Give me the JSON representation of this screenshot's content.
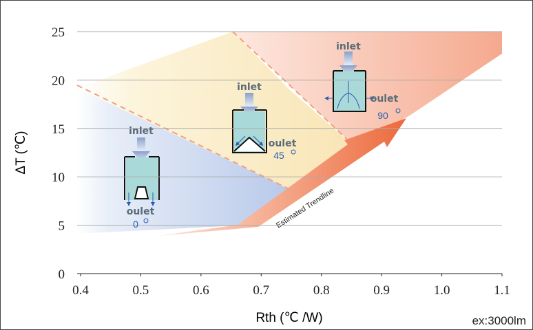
{
  "chart_data": {
    "type": "zones",
    "x_label": "Rth (℃ /W)",
    "y_label": "ΔT (℃)",
    "note": "ex:3000lm",
    "xlim": [
      0.4,
      1.1
    ],
    "xticks": [
      0.4,
      0.5,
      0.6,
      0.7,
      0.8,
      0.9,
      {
        "value": 1,
        "label": "1.0"
      },
      1.1
    ],
    "ylim": [
      0,
      25
    ],
    "yticks": [
      0,
      5,
      10,
      15,
      20,
      25
    ],
    "grid": true,
    "trendline_label": "Estimated Trendline",
    "devices": [
      {
        "inlet": "inlet",
        "outlet": "oulet",
        "angle": 0
      },
      {
        "inlet": "inlet",
        "outlet": "oulet",
        "angle": 45
      },
      {
        "inlet": "inlet",
        "outlet": "oulet",
        "angle": 90
      }
    ]
  }
}
